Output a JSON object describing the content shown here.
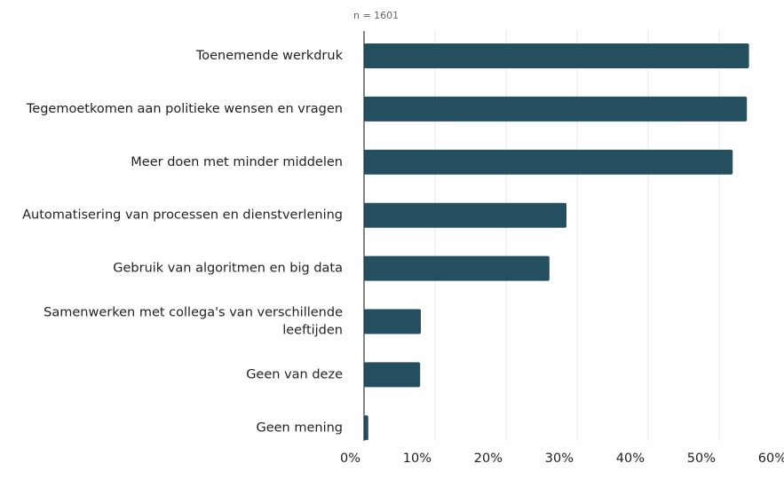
{
  "chart_data": {
    "type": "bar",
    "orientation": "horizontal",
    "subtitle": "n = 1601",
    "categories": [
      "Toenemende werkdruk",
      "Tegemoetkomen aan politieke wensen en vragen",
      "Meer doen met minder middelen",
      "Automatisering van processen en dienstverlening",
      "Gebruik van algoritmen en big data",
      "Samenwerken met collega's van verschillende leeftijden",
      "Geen van deze",
      "Geen mening"
    ],
    "values": [
      54.2,
      53.9,
      51.9,
      28.5,
      26.1,
      8,
      7.9,
      0.6
    ],
    "color": "#234f5e",
    "xlim": [
      0,
      60
    ],
    "xticks": [
      {
        "value": 0,
        "label": "0%"
      },
      {
        "value": 10,
        "label": "10%"
      },
      {
        "value": 20,
        "label": "20%"
      },
      {
        "value": 30,
        "label": "30%"
      },
      {
        "value": 40,
        "label": "40%"
      },
      {
        "value": 50,
        "label": "50%"
      },
      {
        "value": 60,
        "label": "60%"
      }
    ],
    "grid": true
  }
}
